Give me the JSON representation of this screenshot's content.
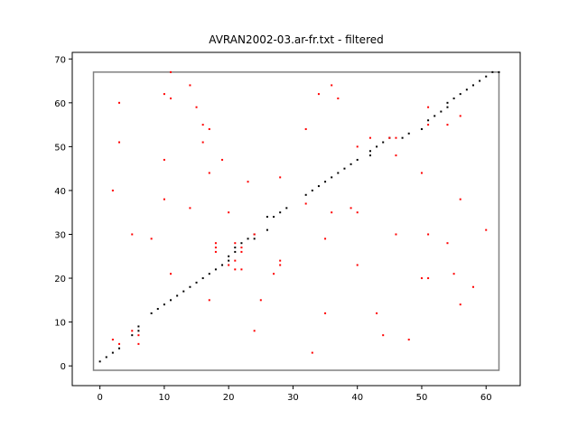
{
  "chart_data": {
    "type": "scatter",
    "title": "AVRAN2002-03.ar-fr.txt - filtered",
    "xlabel": "",
    "ylabel": "",
    "xlim": [
      -4.3,
      65.3
    ],
    "ylim": [
      -4.5,
      71.5
    ],
    "xticks": [
      0,
      10,
      20,
      30,
      40,
      50,
      60
    ],
    "yticks": [
      0,
      10,
      20,
      30,
      40,
      50,
      60,
      70
    ],
    "grid": false,
    "frame": {
      "x": [
        -1,
        62
      ],
      "y": [
        -1,
        67
      ],
      "color": "#808080"
    },
    "series": [
      {
        "color": "#000000",
        "points": [
          [
            0,
            1
          ],
          [
            1,
            2
          ],
          [
            2,
            3
          ],
          [
            3,
            4
          ],
          [
            5,
            7
          ],
          [
            6,
            8
          ],
          [
            6,
            9
          ],
          [
            8,
            12
          ],
          [
            9,
            13
          ],
          [
            10,
            14
          ],
          [
            11,
            15
          ],
          [
            12,
            16
          ],
          [
            13,
            17
          ],
          [
            14,
            18
          ],
          [
            15,
            19
          ],
          [
            16,
            20
          ],
          [
            17,
            21
          ],
          [
            18,
            22
          ],
          [
            19,
            23
          ],
          [
            20,
            24
          ],
          [
            20,
            25
          ],
          [
            21,
            26
          ],
          [
            21,
            27
          ],
          [
            22,
            28
          ],
          [
            23,
            29
          ],
          [
            24,
            29
          ],
          [
            24,
            30
          ],
          [
            26,
            31
          ],
          [
            26,
            34
          ],
          [
            27,
            34
          ],
          [
            28,
            35
          ],
          [
            29,
            36
          ],
          [
            32,
            39
          ],
          [
            33,
            40
          ],
          [
            34,
            41
          ],
          [
            35,
            42
          ],
          [
            36,
            43
          ],
          [
            37,
            44
          ],
          [
            38,
            45
          ],
          [
            39,
            46
          ],
          [
            40,
            47
          ],
          [
            42,
            48
          ],
          [
            42,
            49
          ],
          [
            43,
            50
          ],
          [
            44,
            51
          ],
          [
            45,
            52
          ],
          [
            47,
            52
          ],
          [
            48,
            53
          ],
          [
            50,
            54
          ],
          [
            51,
            56
          ],
          [
            52,
            57
          ],
          [
            53,
            58
          ],
          [
            54,
            59
          ],
          [
            54,
            60
          ],
          [
            55,
            61
          ],
          [
            56,
            62
          ],
          [
            57,
            63
          ],
          [
            58,
            64
          ],
          [
            59,
            65
          ],
          [
            60,
            66
          ],
          [
            61,
            67
          ],
          [
            62,
            67
          ]
        ]
      },
      {
        "color": "#ff0000",
        "points": [
          [
            2,
            6
          ],
          [
            3,
            5
          ],
          [
            2,
            40
          ],
          [
            3,
            51
          ],
          [
            3,
            60
          ],
          [
            5,
            30
          ],
          [
            5,
            8
          ],
          [
            6,
            7
          ],
          [
            6,
            5
          ],
          [
            8,
            29
          ],
          [
            10,
            62
          ],
          [
            10,
            47
          ],
          [
            10,
            38
          ],
          [
            11,
            61
          ],
          [
            11,
            67
          ],
          [
            11,
            21
          ],
          [
            14,
            64
          ],
          [
            14,
            36
          ],
          [
            15,
            59
          ],
          [
            16,
            55
          ],
          [
            16,
            51
          ],
          [
            17,
            54
          ],
          [
            17,
            44
          ],
          [
            17,
            15
          ],
          [
            18,
            28
          ],
          [
            18,
            27
          ],
          [
            18,
            26
          ],
          [
            19,
            47
          ],
          [
            20,
            35
          ],
          [
            20,
            23
          ],
          [
            21,
            28
          ],
          [
            21,
            24
          ],
          [
            21,
            22
          ],
          [
            22,
            27
          ],
          [
            22,
            26
          ],
          [
            22,
            22
          ],
          [
            23,
            42
          ],
          [
            24,
            30
          ],
          [
            24,
            8
          ],
          [
            25,
            15
          ],
          [
            27,
            21
          ],
          [
            28,
            43
          ],
          [
            28,
            24
          ],
          [
            28,
            23
          ],
          [
            32,
            54
          ],
          [
            32,
            37
          ],
          [
            33,
            3
          ],
          [
            34,
            62
          ],
          [
            35,
            29
          ],
          [
            35,
            12
          ],
          [
            36,
            64
          ],
          [
            36,
            35
          ],
          [
            37,
            61
          ],
          [
            39,
            36
          ],
          [
            40,
            35
          ],
          [
            40,
            23
          ],
          [
            40,
            50
          ],
          [
            42,
            52
          ],
          [
            43,
            12
          ],
          [
            44,
            7
          ],
          [
            45,
            52
          ],
          [
            46,
            52
          ],
          [
            46,
            48
          ],
          [
            46,
            30
          ],
          [
            48,
            6
          ],
          [
            50,
            44
          ],
          [
            50,
            20
          ],
          [
            51,
            59
          ],
          [
            51,
            55
          ],
          [
            51,
            30
          ],
          [
            51,
            20
          ],
          [
            54,
            55
          ],
          [
            54,
            28
          ],
          [
            55,
            21
          ],
          [
            56,
            57
          ],
          [
            56,
            38
          ],
          [
            56,
            14
          ],
          [
            58,
            18
          ],
          [
            60,
            31
          ]
        ]
      }
    ]
  }
}
